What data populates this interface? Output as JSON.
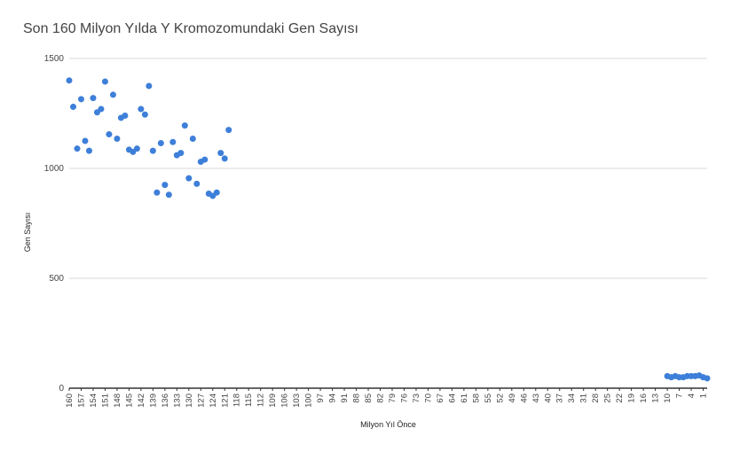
{
  "chart_data": {
    "type": "scatter",
    "title": "Son 160 Milyon Yılda Y Kromozomundaki Gen Sayısı",
    "xlabel": "Milyon Yıl Önce",
    "ylabel": "Gen Sayısı",
    "x_reversed": true,
    "xlim": [
      0,
      160
    ],
    "ylim": [
      0,
      1500
    ],
    "y_ticks": [
      0,
      500,
      1000,
      1500
    ],
    "x_tick_labels": [
      "160",
      "157",
      "154",
      "151",
      "148",
      "145",
      "142",
      "139",
      "136",
      "133",
      "130",
      "127",
      "124",
      "121",
      "118",
      "115",
      "112",
      "109",
      "106",
      "103",
      "100",
      "97",
      "94",
      "91",
      "88",
      "85",
      "82",
      "79",
      "76",
      "73",
      "70",
      "67",
      "64",
      "61",
      "58",
      "55",
      "52",
      "49",
      "46",
      "43",
      "40",
      "37",
      "34",
      "31",
      "28",
      "25",
      "22",
      "19",
      "16",
      "13",
      "10",
      "7",
      "4",
      "1"
    ],
    "grid": true,
    "colors": {
      "points": "#3d7fd9",
      "grid": "#d9d9d9",
      "axis": "#333333"
    },
    "points": [
      {
        "x": 160,
        "y": 1400
      },
      {
        "x": 159,
        "y": 1280
      },
      {
        "x": 158,
        "y": 1090
      },
      {
        "x": 157,
        "y": 1315
      },
      {
        "x": 156,
        "y": 1125
      },
      {
        "x": 155,
        "y": 1080
      },
      {
        "x": 154,
        "y": 1320
      },
      {
        "x": 153,
        "y": 1255
      },
      {
        "x": 152,
        "y": 1270
      },
      {
        "x": 151,
        "y": 1395
      },
      {
        "x": 150,
        "y": 1155
      },
      {
        "x": 149,
        "y": 1335
      },
      {
        "x": 148,
        "y": 1135
      },
      {
        "x": 147,
        "y": 1230
      },
      {
        "x": 146,
        "y": 1240
      },
      {
        "x": 145,
        "y": 1085
      },
      {
        "x": 144,
        "y": 1075
      },
      {
        "x": 143,
        "y": 1090
      },
      {
        "x": 142,
        "y": 1270
      },
      {
        "x": 141,
        "y": 1245
      },
      {
        "x": 140,
        "y": 1375
      },
      {
        "x": 139,
        "y": 1080
      },
      {
        "x": 138,
        "y": 890
      },
      {
        "x": 137,
        "y": 1115
      },
      {
        "x": 136,
        "y": 925
      },
      {
        "x": 135,
        "y": 880
      },
      {
        "x": 134,
        "y": 1120
      },
      {
        "x": 133,
        "y": 1060
      },
      {
        "x": 132,
        "y": 1070
      },
      {
        "x": 131,
        "y": 1195
      },
      {
        "x": 130,
        "y": 955
      },
      {
        "x": 129,
        "y": 1135
      },
      {
        "x": 128,
        "y": 930
      },
      {
        "x": 127,
        "y": 1030
      },
      {
        "x": 126,
        "y": 1040
      },
      {
        "x": 125,
        "y": 885
      },
      {
        "x": 124,
        "y": 875
      },
      {
        "x": 123,
        "y": 890
      },
      {
        "x": 122,
        "y": 1070
      },
      {
        "x": 121,
        "y": 1045
      },
      {
        "x": 120,
        "y": 1175
      },
      {
        "x": 10,
        "y": 55
      },
      {
        "x": 9,
        "y": 50
      },
      {
        "x": 8,
        "y": 55
      },
      {
        "x": 7,
        "y": 50
      },
      {
        "x": 6,
        "y": 50
      },
      {
        "x": 5,
        "y": 55
      },
      {
        "x": 4,
        "y": 55
      },
      {
        "x": 3,
        "y": 55
      },
      {
        "x": 2,
        "y": 58
      },
      {
        "x": 1,
        "y": 50
      },
      {
        "x": 0,
        "y": 45
      }
    ]
  }
}
